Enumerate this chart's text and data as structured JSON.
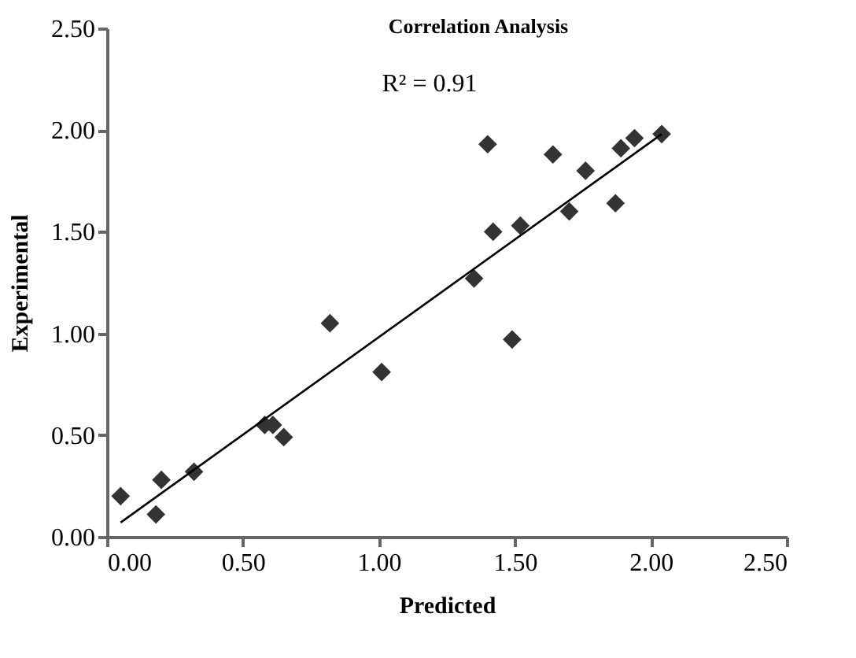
{
  "chart_data": {
    "type": "scatter",
    "title": "Correlation Analysis",
    "xlabel": "Predicted",
    "ylabel": "Experimental",
    "annotations": [
      "R² = 0.91"
    ],
    "series": [
      {
        "marker": "diamond",
        "color": "#333333",
        "x": [
          0.05,
          0.18,
          0.2,
          0.32,
          0.58,
          0.61,
          0.65,
          0.82,
          1.01,
          1.35,
          1.4,
          1.42,
          1.49,
          1.52,
          1.64,
          1.7,
          1.76,
          1.87,
          1.89,
          1.94,
          2.04
        ],
        "values": [
          0.2,
          0.11,
          0.28,
          0.32,
          0.55,
          0.55,
          0.49,
          1.05,
          0.81,
          1.27,
          1.93,
          1.5,
          0.97,
          1.53,
          1.88,
          1.6,
          1.8,
          1.64,
          1.91,
          1.96,
          1.98
        ]
      },
      {
        "type": "line",
        "marker": "none",
        "line_style": "solid",
        "color": "#000000",
        "x": [
          0.05,
          2.04
        ],
        "values": [
          0.07,
          1.98
        ]
      }
    ],
    "legend": false,
    "grid": false,
    "xlim": [
      0,
      2.5
    ],
    "ylim": [
      0,
      2.5
    ],
    "xticks": [
      {
        "value": 0,
        "label": "0.00"
      },
      {
        "value": 0.5,
        "label": "0.50"
      },
      {
        "value": 1,
        "label": "1.00"
      },
      {
        "value": 1.5,
        "label": "1.50"
      },
      {
        "value": 2,
        "label": "2.00"
      },
      {
        "value": 2.5,
        "label": "2.50"
      }
    ],
    "yticks": [
      {
        "value": 0,
        "label": "0.00"
      },
      {
        "value": 0.5,
        "label": "0.50"
      },
      {
        "value": 1,
        "label": "1.00"
      },
      {
        "value": 1.5,
        "label": "1.50"
      },
      {
        "value": 2,
        "label": "2.00"
      },
      {
        "value": 2.5,
        "label": "2.50"
      }
    ]
  }
}
